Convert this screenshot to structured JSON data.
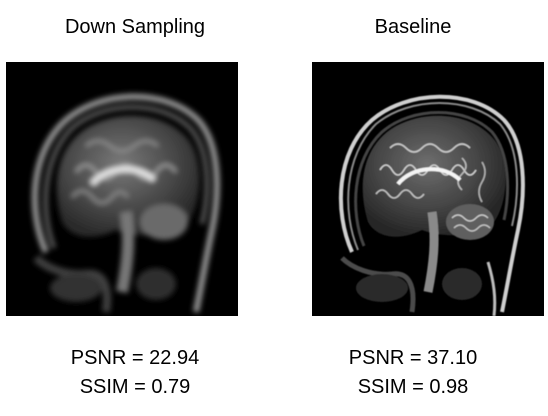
{
  "panels": [
    {
      "title": "Down Sampling",
      "psnr": "PSNR = 22.94",
      "ssim": "SSIM = 0.79"
    },
    {
      "title": "Baseline",
      "psnr": "PSNR = 37.10",
      "ssim": "SSIM = 0.98"
    }
  ],
  "colors": {
    "background": "#ffffff",
    "image_background": "#000000",
    "text": "#000000"
  }
}
